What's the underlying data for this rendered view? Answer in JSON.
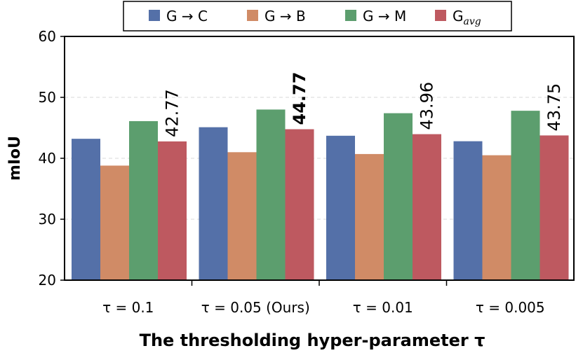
{
  "chart_data": {
    "type": "bar",
    "title": "",
    "xlabel": "The thresholding hyper-parameter τ",
    "ylabel": "mIoU",
    "ylim": [
      20,
      60
    ],
    "yticks": [
      20,
      30,
      40,
      50,
      60
    ],
    "grid": true,
    "legend": "top-center",
    "categories": [
      "τ = 0.1",
      "τ = 0.05 (Ours)",
      "τ = 0.01",
      "τ = 0.005"
    ],
    "series": [
      {
        "name": "G → C",
        "base": "G → C",
        "sub": "",
        "color": "#5470a8",
        "values": [
          43.2,
          45.1,
          43.7,
          42.8
        ]
      },
      {
        "name": "G → B",
        "base": "G → B",
        "sub": "",
        "color": "#d08b66",
        "values": [
          38.8,
          41.0,
          40.7,
          40.5
        ]
      },
      {
        "name": "G → M",
        "base": "G → M",
        "sub": "",
        "color": "#5c9e6e",
        "values": [
          46.1,
          48.0,
          47.4,
          47.8
        ]
      },
      {
        "name": "G_avg",
        "base": "G",
        "sub": "avg",
        "color": "#be5960",
        "values": [
          42.77,
          44.77,
          43.96,
          43.75
        ]
      }
    ],
    "data_labels": {
      "series": "G_avg",
      "labels": [
        "42.77",
        "44.77",
        "43.96",
        "43.75"
      ],
      "bold_index": 1
    }
  }
}
